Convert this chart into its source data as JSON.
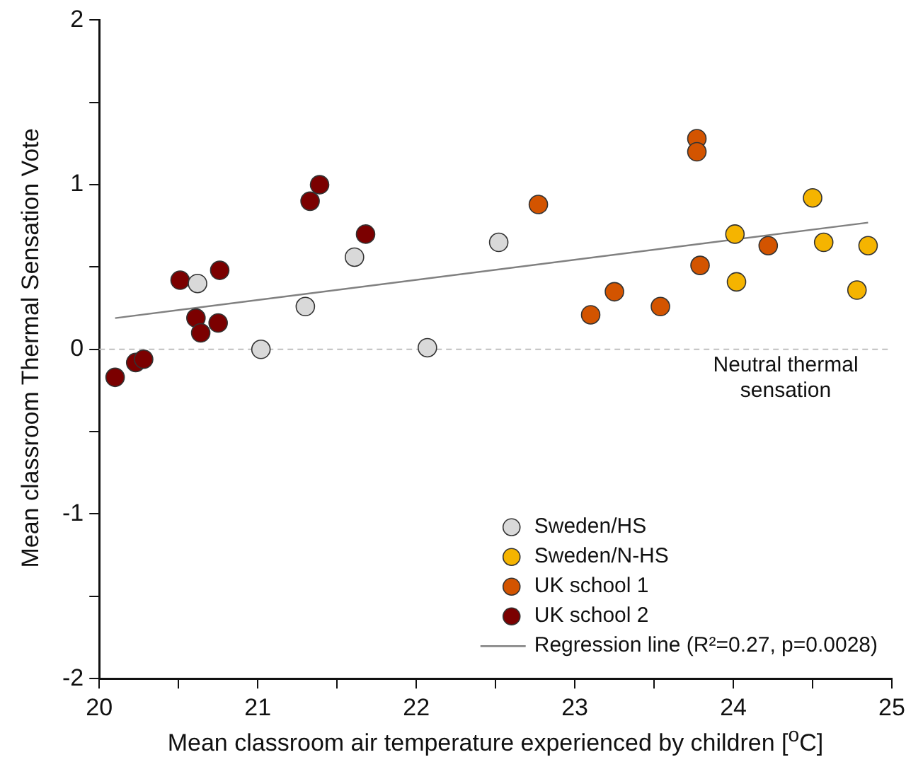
{
  "chart_data": {
    "type": "scatter",
    "xlabel": "Mean classroom air temperature experienced by children [$^{o}$C]",
    "ylabel": "Mean classroom Thermal Sensation Vote",
    "xlim": [
      20,
      25
    ],
    "ylim": [
      -2,
      2
    ],
    "xticks": [
      20,
      {
        "value": 20.5,
        "label": null
      },
      21,
      {
        "value": 21.5,
        "label": null
      },
      22,
      {
        "value": 22.5,
        "label": null
      },
      23,
      {
        "value": 23.5,
        "label": null
      },
      24,
      {
        "value": 24.5,
        "label": null
      },
      25
    ],
    "yticks": [
      -2,
      {
        "value": -1.5,
        "label": null
      },
      -1,
      {
        "value": -0.5,
        "label": null
      },
      0,
      {
        "value": 0.5,
        "label": null
      },
      1,
      {
        "value": 1.5,
        "label": null
      },
      2
    ],
    "grid": false,
    "legend": "bottom right",
    "marker": "circle",
    "ref_lines": [
      {
        "axis": "y",
        "value": 0,
        "label": "Neutral thermal sensation",
        "color": "#c0c0c0",
        "line_style": "dashed"
      }
    ],
    "series": [
      {
        "name": "Sweden/HS",
        "color": "#d9d9d9",
        "x": [
          20.62,
          21.02,
          21.3,
          21.61,
          22.07,
          22.52
        ],
        "values": [
          0.4,
          0.0,
          0.26,
          0.56,
          0.01,
          0.65
        ]
      },
      {
        "name": "Sweden/N-HS",
        "color": "#f5b400",
        "x": [
          24.01,
          24.02,
          24.5,
          24.57,
          24.78,
          24.85
        ],
        "values": [
          0.7,
          0.41,
          0.92,
          0.65,
          0.36,
          0.63
        ]
      },
      {
        "name": "UK school 1",
        "color": "#d35400",
        "x": [
          22.77,
          23.77,
          23.77,
          23.1,
          23.25,
          23.54,
          23.79,
          24.22
        ],
        "values": [
          0.88,
          1.28,
          1.2,
          0.21,
          0.35,
          0.26,
          0.51,
          0.63
        ]
      },
      {
        "name": "UK school 2",
        "color": "#7b0000",
        "x": [
          20.1,
          20.23,
          20.28,
          20.51,
          20.61,
          20.64,
          20.76,
          20.75,
          21.33,
          21.39,
          21.68
        ],
        "values": [
          -0.17,
          -0.08,
          -0.06,
          0.42,
          0.19,
          0.1,
          0.48,
          0.16,
          0.9,
          1.0,
          0.7
        ]
      },
      {
        "name": "Regression line (R²=0.27, p=0.0028)",
        "type": "line",
        "color": "#808080",
        "marker": "none",
        "x": [
          20.1,
          24.85
        ],
        "values": [
          0.19,
          0.77
        ]
      }
    ]
  }
}
